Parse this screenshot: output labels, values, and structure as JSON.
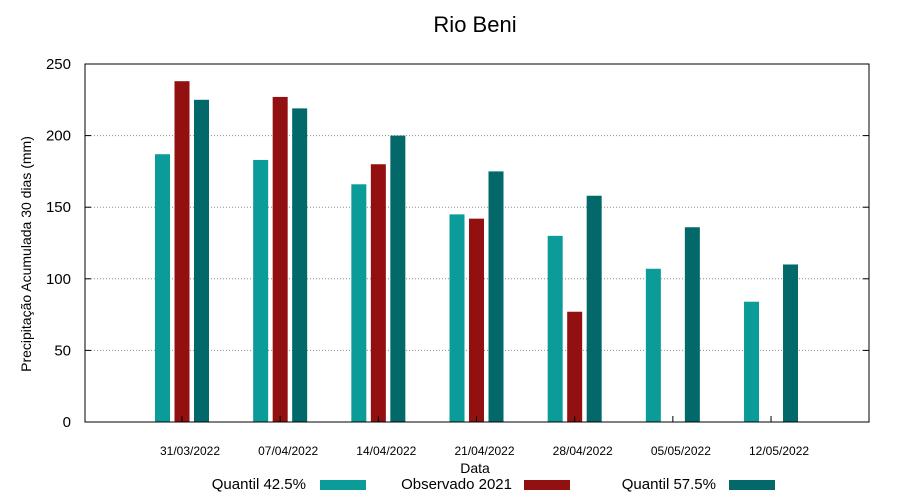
{
  "chart_data": {
    "type": "bar",
    "title": "Rio Beni",
    "xlabel": "Data",
    "ylabel": "Precipitação Acumulada 30 dias (mm)",
    "ylim": [
      0,
      250
    ],
    "yticks": [
      "0",
      "50",
      "100",
      "150",
      "200",
      "250"
    ],
    "grid": true,
    "legend_position": "bottom",
    "categories": [
      "31/03/2022",
      "07/04/2022",
      "14/04/2022",
      "21/04/2022",
      "28/04/2022",
      "05/05/2022",
      "12/05/2022"
    ],
    "series": [
      {
        "name": "Quantil 42.5%",
        "color": "#0b9c9a",
        "values": [
          187,
          183,
          166,
          145,
          130,
          107,
          84
        ]
      },
      {
        "name": "Observado 2021",
        "color": "#931010",
        "values": [
          238,
          227,
          180,
          142,
          77,
          null,
          null
        ]
      },
      {
        "name": "Quantil 57.5%",
        "color": "#03686a",
        "values": [
          225,
          219,
          200,
          175,
          158,
          136,
          110
        ]
      }
    ]
  }
}
